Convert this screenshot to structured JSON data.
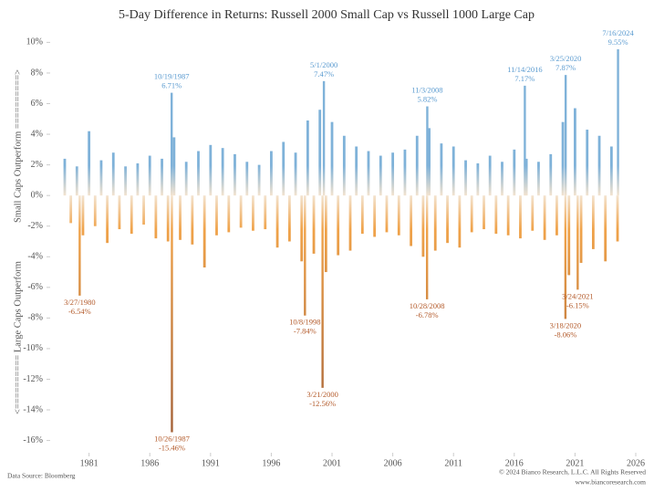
{
  "chart_data": {
    "type": "bar",
    "title": "5-Day Difference in Returns: Russell 2000 Small Cap vs Russell 1000 Large Cap",
    "y_label_top": "Small Caps Outperform ==========>",
    "y_label_bottom": "<========== Large Caps Outperform",
    "source": "Data Source: Bloomberg",
    "copyright": "© 2024 Bianco Research, L.L.C. All Rights Reserved",
    "website": "www.biancoresearch.com",
    "positive_color": "#7fb2d9",
    "zero_color": "#f3e3cf",
    "negative_color": "#f0a34a",
    "extreme_negative_color": "#9c5a35",
    "positive_label_color": "#5b9bd0",
    "negative_label_color": "#b35a2a",
    "xlim": [
      1977.8,
      2026.6
    ],
    "xticks": [
      1981,
      1986,
      1991,
      1996,
      2001,
      2006,
      2011,
      2016,
      2021,
      2026
    ],
    "ylim": [
      -16.8,
      10.8
    ],
    "yticks": [
      {
        "value": -16,
        "label": "-16%"
      },
      {
        "value": -14,
        "label": "-14%"
      },
      {
        "value": -12,
        "label": "-12%"
      },
      {
        "value": -10,
        "label": "-10%"
      },
      {
        "value": -8,
        "label": "-8%"
      },
      {
        "value": -6,
        "label": "-6%"
      },
      {
        "value": -4,
        "label": "-4%"
      },
      {
        "value": -2,
        "label": "-2%"
      },
      {
        "value": 0,
        "label": "0%"
      },
      {
        "value": 2,
        "label": "2%"
      },
      {
        "value": 4,
        "label": "4%"
      },
      {
        "value": 6,
        "label": "6%"
      },
      {
        "value": 8,
        "label": "8%"
      },
      {
        "value": 10,
        "label": "10%"
      }
    ],
    "x": [
      1979.0,
      1979.5,
      1980.0,
      1980.5,
      1981.0,
      1981.5,
      1982.0,
      1982.5,
      1983.0,
      1983.5,
      1984.0,
      1984.5,
      1985.0,
      1985.5,
      1986.0,
      1986.5,
      1987.0,
      1987.5,
      1988.0,
      1988.5,
      1989.0,
      1989.5,
      1990.0,
      1990.5,
      1991.0,
      1991.5,
      1992.0,
      1992.5,
      1993.0,
      1993.5,
      1994.0,
      1994.5,
      1995.0,
      1995.5,
      1996.0,
      1996.5,
      1997.0,
      1997.5,
      1998.0,
      1998.5,
      1999.0,
      1999.5,
      2000.0,
      2000.5,
      2001.0,
      2001.5,
      2002.0,
      2002.5,
      2003.0,
      2003.5,
      2004.0,
      2004.5,
      2005.0,
      2005.5,
      2006.0,
      2006.5,
      2007.0,
      2007.5,
      2008.0,
      2008.5,
      2009.0,
      2009.5,
      2010.0,
      2010.5,
      2011.0,
      2011.5,
      2012.0,
      2012.5,
      2013.0,
      2013.5,
      2014.0,
      2014.5,
      2015.0,
      2015.5,
      2016.0,
      2016.5,
      2017.0,
      2017.5,
      2018.0,
      2018.5,
      2019.0,
      2019.5,
      2020.0,
      2020.5,
      2021.0,
      2021.5,
      2022.0,
      2022.5,
      2023.0,
      2023.5,
      2024.0,
      2024.5
    ],
    "values": [
      2.4,
      -1.8,
      1.9,
      -2.6,
      4.2,
      -2.0,
      2.3,
      -3.1,
      2.8,
      -2.2,
      1.9,
      -2.5,
      2.1,
      -1.9,
      2.6,
      -2.8,
      2.4,
      -3.0,
      3.8,
      -2.9,
      2.2,
      -3.2,
      2.9,
      -4.7,
      3.3,
      -2.6,
      3.1,
      -2.4,
      2.7,
      -2.1,
      2.2,
      -2.3,
      2.0,
      -2.2,
      2.9,
      -3.4,
      3.5,
      -3.0,
      2.8,
      -4.3,
      4.9,
      -3.8,
      5.6,
      -5.0,
      4.8,
      -3.9,
      3.9,
      -3.6,
      3.2,
      -2.5,
      2.9,
      -2.7,
      2.6,
      -2.4,
      2.8,
      -2.6,
      3.0,
      -3.3,
      3.9,
      -4.0,
      4.4,
      -3.6,
      3.4,
      -3.1,
      3.2,
      -3.4,
      2.3,
      -2.4,
      2.1,
      -2.2,
      2.6,
      -2.5,
      2.2,
      -2.6,
      3.0,
      -2.8,
      2.4,
      -2.3,
      2.2,
      -2.9,
      2.7,
      -2.6,
      4.8,
      -5.2,
      5.7,
      -4.4,
      4.3,
      -3.5,
      3.9,
      -4.3,
      3.2,
      -3.0
    ],
    "annotations": [
      {
        "date": "3/27/1980",
        "x": 1980.23,
        "value": -6.54,
        "value_label": "-6.54%"
      },
      {
        "date": "10/19/1987",
        "x": 1987.8,
        "value": 6.71,
        "value_label": "6.71%"
      },
      {
        "date": "10/26/1987",
        "x": 1987.82,
        "value": -15.46,
        "value_label": "-15.46%"
      },
      {
        "date": "10/8/1998",
        "x": 1998.77,
        "value": -7.84,
        "value_label": "-7.84%"
      },
      {
        "date": "5/1/2000",
        "x": 2000.33,
        "value": 7.47,
        "value_label": "7.47%"
      },
      {
        "date": "3/21/2000",
        "x": 2000.22,
        "value": -12.56,
        "value_label": "-12.56%"
      },
      {
        "date": "11/3/2008",
        "x": 2008.84,
        "value": 5.82,
        "value_label": "5.82%"
      },
      {
        "date": "10/28/2008",
        "x": 2008.82,
        "value": -6.78,
        "value_label": "-6.78%"
      },
      {
        "date": "11/14/2016",
        "x": 2016.87,
        "value": 7.17,
        "value_label": "7.17%"
      },
      {
        "date": "3/25/2020",
        "x": 2020.23,
        "value": 7.87,
        "value_label": "7.87%"
      },
      {
        "date": "3/18/2020",
        "x": 2020.21,
        "value": -8.06,
        "value_label": "-8.06%"
      },
      {
        "date": "3/24/2021",
        "x": 2021.22,
        "value": -6.15,
        "value_label": "-6.15%"
      },
      {
        "date": "7/16/2024",
        "x": 2024.54,
        "value": 9.55,
        "value_label": "9.55%"
      }
    ]
  }
}
